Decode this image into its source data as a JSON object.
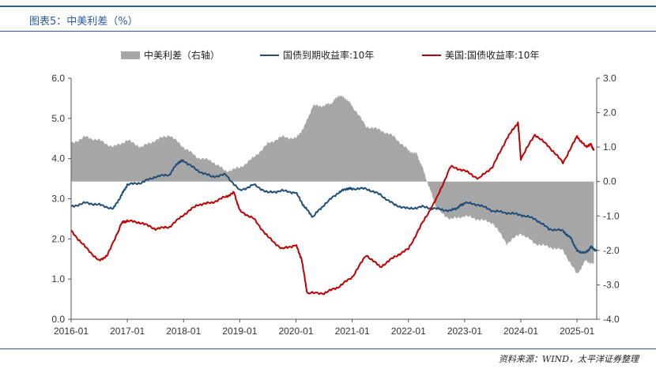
{
  "figure": {
    "title": "图表5：中美利差（%）",
    "source": "资料来源：WIND，太平洋证券整理"
  },
  "chart_data": {
    "type": "line",
    "title": "中美利差（%）",
    "left_axis": {
      "ylim": [
        0,
        6
      ],
      "ticks": [
        "0.0",
        "1.0",
        "2.0",
        "3.0",
        "4.0",
        "5.0",
        "6.0"
      ]
    },
    "right_axis": {
      "ylim": [
        -4,
        3
      ],
      "ticks": [
        "-4.0",
        "-3.0",
        "-2.0",
        "-1.0",
        "0.0",
        "1.0",
        "2.0",
        "3.0"
      ]
    },
    "x_tick_labels": [
      "2016-01",
      "2017-01",
      "2018-01",
      "2019-01",
      "2020-01",
      "2021-01",
      "2022-01",
      "2023-01",
      "2024-01",
      "2025-01"
    ],
    "x_range": [
      2016.0,
      2025.35
    ],
    "legend_position": "top-center",
    "series": [
      {
        "name": "中美利差（右轴）",
        "kind": "area",
        "axis": "right",
        "color": "#a6a6a6",
        "x": [
          2016.0,
          2016.25,
          2016.5,
          2016.75,
          2017.0,
          2017.25,
          2017.5,
          2017.75,
          2018.0,
          2018.25,
          2018.5,
          2018.75,
          2019.0,
          2019.25,
          2019.5,
          2019.75,
          2020.0,
          2020.15,
          2020.3,
          2020.5,
          2020.65,
          2020.75,
          2020.9,
          2021.0,
          2021.25,
          2021.5,
          2021.75,
          2022.0,
          2022.15,
          2022.25,
          2022.4,
          2022.5,
          2022.75,
          2023.0,
          2023.25,
          2023.5,
          2023.75,
          2024.0,
          2024.25,
          2024.5,
          2024.75,
          2025.0,
          2025.15,
          2025.3
        ],
        "values": [
          1.1,
          1.3,
          1.2,
          1.0,
          1.2,
          1.0,
          1.2,
          1.35,
          1.0,
          0.7,
          0.6,
          0.3,
          0.4,
          0.7,
          1.1,
          1.3,
          1.25,
          1.6,
          2.2,
          2.2,
          2.3,
          2.5,
          2.4,
          2.2,
          1.6,
          1.5,
          1.3,
          0.9,
          0.8,
          0.4,
          -0.3,
          -0.8,
          -1.1,
          -1.0,
          -1.1,
          -1.2,
          -1.8,
          -1.5,
          -1.8,
          -1.9,
          -2.0,
          -2.7,
          -2.3,
          -2.4
        ]
      },
      {
        "name": "国债到期收益率:10年",
        "kind": "line",
        "axis": "left",
        "color": "#1f4e79",
        "x": [
          2016.0,
          2016.25,
          2016.5,
          2016.75,
          2016.9,
          2017.0,
          2017.25,
          2017.5,
          2017.75,
          2017.9,
          2018.0,
          2018.25,
          2018.5,
          2018.75,
          2019.0,
          2019.25,
          2019.5,
          2019.75,
          2020.0,
          2020.15,
          2020.3,
          2020.5,
          2020.75,
          2020.9,
          2021.0,
          2021.25,
          2021.5,
          2021.75,
          2022.0,
          2022.25,
          2022.5,
          2022.75,
          2022.9,
          2023.0,
          2023.25,
          2023.5,
          2023.75,
          2024.0,
          2024.25,
          2024.5,
          2024.75,
          2024.9,
          2025.0,
          2025.15,
          2025.25,
          2025.35
        ],
        "values": [
          2.8,
          2.9,
          2.85,
          2.75,
          3.1,
          3.35,
          3.4,
          3.55,
          3.6,
          3.9,
          3.95,
          3.7,
          3.55,
          3.6,
          3.2,
          3.35,
          3.15,
          3.2,
          3.15,
          2.8,
          2.55,
          2.85,
          3.15,
          3.25,
          3.25,
          3.25,
          3.1,
          2.85,
          2.75,
          2.8,
          2.75,
          2.7,
          2.8,
          2.9,
          2.85,
          2.7,
          2.65,
          2.6,
          2.5,
          2.25,
          2.2,
          2.0,
          1.7,
          1.65,
          1.8,
          1.7
        ]
      },
      {
        "name": "美国:国债收益率:10年",
        "kind": "line",
        "axis": "left",
        "color": "#c00000",
        "x": [
          2016.0,
          2016.25,
          2016.5,
          2016.65,
          2016.9,
          2017.0,
          2017.25,
          2017.5,
          2017.75,
          2018.0,
          2018.25,
          2018.5,
          2018.75,
          2018.9,
          2019.0,
          2019.25,
          2019.5,
          2019.75,
          2020.0,
          2020.1,
          2020.2,
          2020.5,
          2020.75,
          2021.0,
          2021.25,
          2021.5,
          2021.75,
          2022.0,
          2022.25,
          2022.5,
          2022.75,
          2023.0,
          2023.25,
          2023.5,
          2023.75,
          2023.95,
          2024.0,
          2024.25,
          2024.5,
          2024.75,
          2025.0,
          2025.15,
          2025.25,
          2025.3
        ],
        "values": [
          2.2,
          1.8,
          1.45,
          1.6,
          2.4,
          2.45,
          2.4,
          2.25,
          2.3,
          2.6,
          2.85,
          2.9,
          3.05,
          3.15,
          2.7,
          2.5,
          2.05,
          1.75,
          1.85,
          1.5,
          0.65,
          0.65,
          0.8,
          1.05,
          1.6,
          1.3,
          1.55,
          1.75,
          2.4,
          3.0,
          3.8,
          3.7,
          3.5,
          3.8,
          4.5,
          4.9,
          4.0,
          4.6,
          4.3,
          3.9,
          4.55,
          4.3,
          4.35,
          4.2
        ]
      }
    ]
  }
}
